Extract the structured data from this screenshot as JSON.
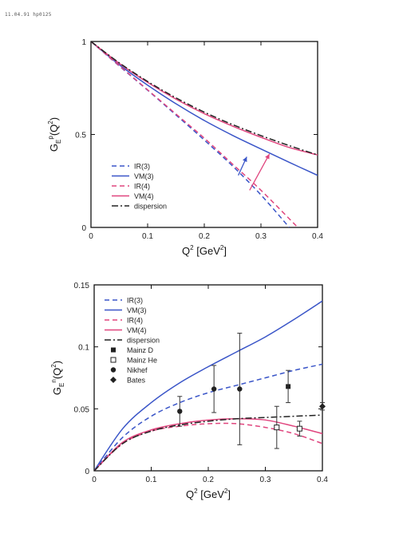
{
  "header": {
    "text": "11.04.91 hp0125"
  },
  "colors": {
    "blue": "#3a55c8",
    "pink": "#e0457e",
    "black": "#222222"
  },
  "chart_data": [
    {
      "type": "line",
      "xlabel": "Q",
      "xlabel_sup": "2",
      "xlabel_unit_pre": " [GeV",
      "xlabel_unit_sup": "2",
      "xlabel_unit_post": "]",
      "ylabel": "G",
      "ylabel_sub": "E",
      "ylabel_sup": "p",
      "ylabel_arg": "(Q",
      "ylabel_arg_sup": "2",
      "ylabel_arg_end": ")",
      "xlim": [
        0,
        0.4
      ],
      "ylim": [
        0,
        1
      ],
      "xticks": [
        "0",
        "0.1",
        "0.2",
        "0.3",
        "0.4"
      ],
      "yticks": [
        "0",
        "0.5",
        "1"
      ],
      "xtick_values": [
        0,
        0.1,
        0.2,
        0.3,
        0.4
      ],
      "ytick_values": [
        0,
        0.5,
        1
      ],
      "legend_position": "bottom-left",
      "series": [
        {
          "name": "IR(3)",
          "color": "#3a55c8",
          "dash": "6,4",
          "x": [
            0,
            0.05,
            0.1,
            0.15,
            0.2,
            0.25,
            0.3,
            0.35
          ],
          "y": [
            1,
            0.868,
            0.738,
            0.605,
            0.47,
            0.33,
            0.175,
            0
          ]
        },
        {
          "name": "VM(3)",
          "color": "#3a55c8",
          "dash": "",
          "x": [
            0,
            0.05,
            0.1,
            0.15,
            0.2,
            0.25,
            0.3,
            0.35,
            0.4
          ],
          "y": [
            1,
            0.875,
            0.765,
            0.665,
            0.575,
            0.495,
            0.422,
            0.35,
            0.28
          ]
        },
        {
          "name": "IR(4)",
          "color": "#e0457e",
          "dash": "6,4",
          "x": [
            0,
            0.05,
            0.1,
            0.15,
            0.2,
            0.25,
            0.3,
            0.365
          ],
          "y": [
            1,
            0.87,
            0.74,
            0.61,
            0.48,
            0.34,
            0.2,
            0
          ]
        },
        {
          "name": "VM(4)",
          "color": "#e0457e",
          "dash": "",
          "x": [
            0,
            0.05,
            0.1,
            0.15,
            0.2,
            0.25,
            0.3,
            0.35,
            0.4
          ],
          "y": [
            1,
            0.882,
            0.78,
            0.69,
            0.612,
            0.545,
            0.485,
            0.43,
            0.39
          ]
        },
        {
          "name": "dispersion",
          "color": "#222222",
          "dash": "8,3,2,3",
          "x": [
            0,
            0.05,
            0.1,
            0.15,
            0.2,
            0.25,
            0.3,
            0.35,
            0.4
          ],
          "y": [
            1,
            0.885,
            0.785,
            0.697,
            0.62,
            0.553,
            0.494,
            0.44,
            0.39
          ]
        }
      ],
      "arrows": [
        {
          "color": "#3a55c8",
          "from": [
            0.26,
            0.28
          ],
          "to": [
            0.275,
            0.38
          ]
        },
        {
          "color": "#e0457e",
          "from": [
            0.28,
            0.2
          ],
          "to": [
            0.315,
            0.395
          ]
        }
      ]
    },
    {
      "type": "line",
      "xlabel": "Q",
      "xlabel_sup": "2",
      "xlabel_unit_pre": " [GeV",
      "xlabel_unit_sup": "2",
      "xlabel_unit_post": "]",
      "ylabel": "G",
      "ylabel_sub": "E",
      "ylabel_sup": "n",
      "ylabel_arg": "(Q",
      "ylabel_arg_sup": "2",
      "ylabel_arg_end": ")",
      "xlim": [
        0,
        0.4
      ],
      "ylim": [
        0,
        0.15
      ],
      "xticks": [
        "0",
        "0.1",
        "0.2",
        "0.3",
        "0.4"
      ],
      "yticks": [
        "0",
        "0.05",
        "0.1",
        "0.15"
      ],
      "xtick_values": [
        0,
        0.1,
        0.2,
        0.3,
        0.4
      ],
      "ytick_values": [
        0,
        0.05,
        0.1,
        0.15
      ],
      "legend_position": "top-left",
      "series": [
        {
          "name": "IR(3)",
          "color": "#3a55c8",
          "dash": "6,4",
          "x": [
            0,
            0.05,
            0.1,
            0.15,
            0.2,
            0.25,
            0.3,
            0.35,
            0.4
          ],
          "y": [
            0,
            0.027,
            0.044,
            0.055,
            0.063,
            0.069,
            0.075,
            0.081,
            0.086
          ]
        },
        {
          "name": "VM(3)",
          "color": "#3a55c8",
          "dash": "",
          "x": [
            0,
            0.05,
            0.1,
            0.15,
            0.2,
            0.25,
            0.3,
            0.35,
            0.4
          ],
          "y": [
            0,
            0.034,
            0.055,
            0.071,
            0.084,
            0.096,
            0.108,
            0.122,
            0.137
          ]
        },
        {
          "name": "IR(4)",
          "color": "#e0457e",
          "dash": "6,4",
          "x": [
            0,
            0.05,
            0.1,
            0.15,
            0.2,
            0.25,
            0.3,
            0.35,
            0.4
          ],
          "y": [
            0,
            0.022,
            0.032,
            0.036,
            0.038,
            0.038,
            0.035,
            0.03,
            0.022
          ]
        },
        {
          "name": "VM(4)",
          "color": "#e0457e",
          "dash": "",
          "x": [
            0,
            0.05,
            0.1,
            0.15,
            0.2,
            0.25,
            0.3,
            0.35,
            0.4
          ],
          "y": [
            0,
            0.023,
            0.033,
            0.038,
            0.041,
            0.042,
            0.041,
            0.036,
            0.03
          ]
        },
        {
          "name": "dispersion",
          "color": "#222222",
          "dash": "8,3,2,3",
          "x": [
            0,
            0.05,
            0.1,
            0.15,
            0.2,
            0.25,
            0.3,
            0.35,
            0.4
          ],
          "y": [
            0,
            0.022,
            0.032,
            0.037,
            0.04,
            0.042,
            0.043,
            0.044,
            0.045
          ]
        }
      ],
      "points": [
        {
          "name": "Mainz D",
          "marker": "square",
          "x": [
            0.34
          ],
          "y": [
            0.068
          ],
          "err": [
            0.013
          ]
        },
        {
          "name": "Mainz He",
          "marker": "square-open",
          "x": [
            0.32,
            0.36
          ],
          "y": [
            0.035,
            0.034
          ],
          "err": [
            0.017,
            0.006
          ]
        },
        {
          "name": "Nikhef",
          "marker": "circle",
          "x": [
            0.15,
            0.21,
            0.255
          ],
          "y": [
            0.048,
            0.066,
            0.066
          ],
          "err": [
            0.012,
            0.019,
            0.045
          ]
        },
        {
          "name": "Bates",
          "marker": "diamond",
          "x": [
            0.4
          ],
          "y": [
            0.052
          ],
          "err": [
            0.003
          ]
        }
      ]
    }
  ]
}
